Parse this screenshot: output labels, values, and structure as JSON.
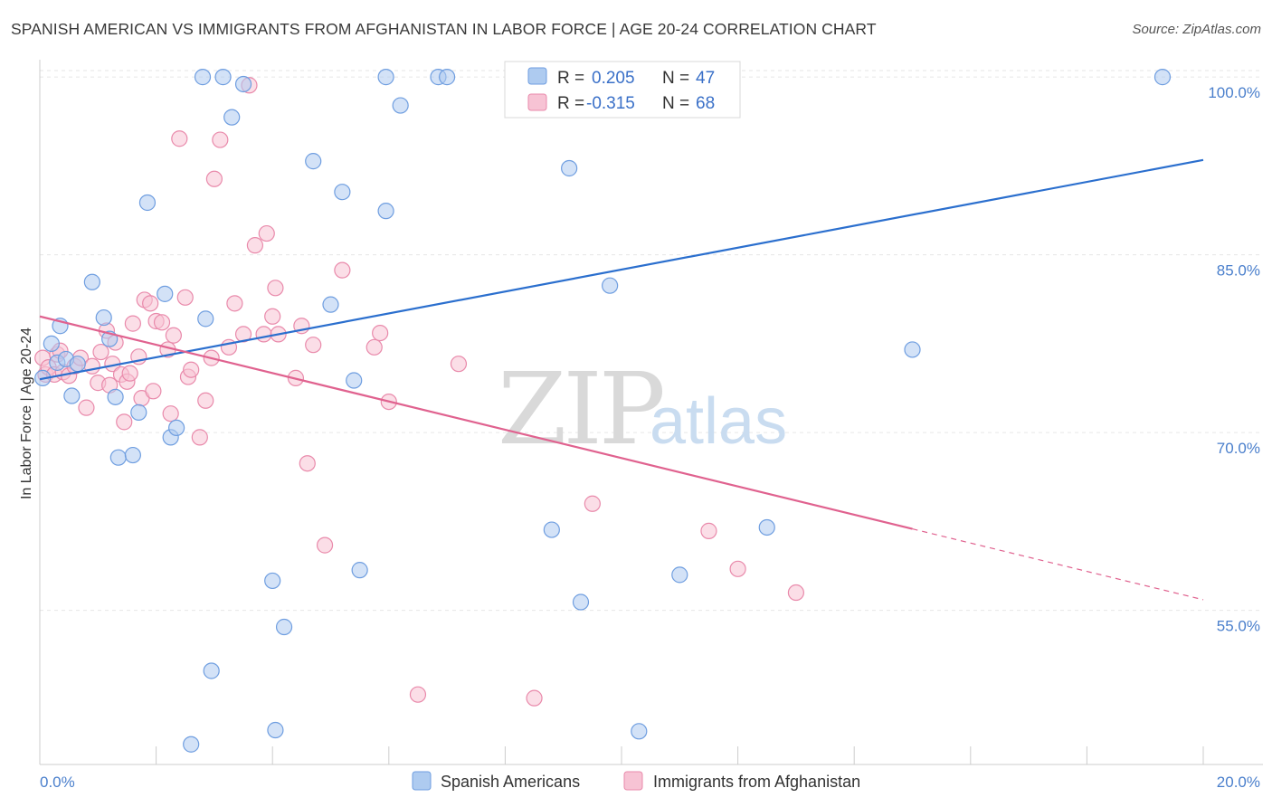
{
  "title": "SPANISH AMERICAN VS IMMIGRANTS FROM AFGHANISTAN IN LABOR FORCE | AGE 20-24 CORRELATION CHART",
  "source": "Source: ZipAtlas.com",
  "watermark": {
    "zip": "ZIP",
    "atlas": "atlas"
  },
  "legend_box": {
    "rows": [
      {
        "r_label": "R = ",
        "r_value": "0.205",
        "n_label": "N = ",
        "n_value": "47"
      },
      {
        "r_label": "R = ",
        "r_value": "-0.315",
        "n_label": "N = ",
        "n_value": "68"
      }
    ]
  },
  "bottom_legend": [
    "Spanish Americans",
    "Immigrants from Afghanistan"
  ],
  "colors": {
    "blue_fill": "#aecbf0",
    "blue_stroke": "#6f9ee0",
    "blue_line": "#2b6fce",
    "pink_fill": "#f7c3d4",
    "pink_stroke": "#e98aab",
    "pink_line": "#e0628f",
    "tick_text": "#4a7fcc",
    "grid": "#e6e6e6"
  },
  "chart_data": {
    "type": "scatter",
    "xlabel": "",
    "ylabel": "In Labor Force | Age 20-24",
    "xlim": [
      0,
      20
    ],
    "ylim": [
      42,
      101
    ],
    "x_tick_labels": [
      "0.0%",
      "20.0%"
    ],
    "y_ticks": [
      55,
      70,
      85,
      100
    ],
    "y_tick_labels": [
      "55.0%",
      "70.0%",
      "85.0%",
      "100.0%"
    ],
    "grid": true,
    "legend_position": "top-center",
    "series": [
      {
        "name": "Spanish Americans",
        "color": "#6f9ee0",
        "r": 0.205,
        "n": 47,
        "trend": {
          "x0": 0.0,
          "y0": 74.5,
          "x1": 20.0,
          "y1": 93.0,
          "dashed_from": null
        },
        "points": [
          [
            0.05,
            74.6
          ],
          [
            0.2,
            77.5
          ],
          [
            0.3,
            75.9
          ],
          [
            0.35,
            79.0
          ],
          [
            0.45,
            76.2
          ],
          [
            0.55,
            73.1
          ],
          [
            0.65,
            75.8
          ],
          [
            0.9,
            82.7
          ],
          [
            1.1,
            79.7
          ],
          [
            1.2,
            77.9
          ],
          [
            1.3,
            73.0
          ],
          [
            1.35,
            67.9
          ],
          [
            1.6,
            68.1
          ],
          [
            1.7,
            71.7
          ],
          [
            1.85,
            89.4
          ],
          [
            2.15,
            81.7
          ],
          [
            2.25,
            69.6
          ],
          [
            2.35,
            70.4
          ],
          [
            2.6,
            43.7
          ],
          [
            2.8,
            100.0
          ],
          [
            2.85,
            79.6
          ],
          [
            2.95,
            49.9
          ],
          [
            3.15,
            100.0
          ],
          [
            3.3,
            96.6
          ],
          [
            3.5,
            99.4
          ],
          [
            4.0,
            57.5
          ],
          [
            4.05,
            44.9
          ],
          [
            4.2,
            53.6
          ],
          [
            4.7,
            92.9
          ],
          [
            5.0,
            80.8
          ],
          [
            5.2,
            90.3
          ],
          [
            5.4,
            74.4
          ],
          [
            5.5,
            58.4
          ],
          [
            5.95,
            88.7
          ],
          [
            5.95,
            100.0
          ],
          [
            6.2,
            97.6
          ],
          [
            6.85,
            100.0
          ],
          [
            7.0,
            100.0
          ],
          [
            8.8,
            61.8
          ],
          [
            9.1,
            92.3
          ],
          [
            9.3,
            55.7
          ],
          [
            9.8,
            82.4
          ],
          [
            10.3,
            44.8
          ],
          [
            11.0,
            58.0
          ],
          [
            12.5,
            62.0
          ],
          [
            15.0,
            77.0
          ],
          [
            19.3,
            100.0
          ]
        ]
      },
      {
        "name": "Immigrants from Afghanistan",
        "color": "#e98aab",
        "r": -0.315,
        "n": 68,
        "trend": {
          "x0": 0.0,
          "y0": 79.8,
          "x1": 20.0,
          "y1": 55.9,
          "dashed_from": 15.0
        },
        "points": [
          [
            0.05,
            76.3
          ],
          [
            0.1,
            74.9
          ],
          [
            0.15,
            75.5
          ],
          [
            0.25,
            74.9
          ],
          [
            0.3,
            76.6
          ],
          [
            0.35,
            76.9
          ],
          [
            0.4,
            75.1
          ],
          [
            0.5,
            74.8
          ],
          [
            0.6,
            75.6
          ],
          [
            0.7,
            76.3
          ],
          [
            0.8,
            72.1
          ],
          [
            0.9,
            75.6
          ],
          [
            1.0,
            74.2
          ],
          [
            1.05,
            76.8
          ],
          [
            1.15,
            78.6
          ],
          [
            1.2,
            74.0
          ],
          [
            1.25,
            75.8
          ],
          [
            1.3,
            77.6
          ],
          [
            1.4,
            74.9
          ],
          [
            1.45,
            70.9
          ],
          [
            1.5,
            74.3
          ],
          [
            1.55,
            75.0
          ],
          [
            1.6,
            79.2
          ],
          [
            1.7,
            76.4
          ],
          [
            1.75,
            72.9
          ],
          [
            1.8,
            81.2
          ],
          [
            1.9,
            80.9
          ],
          [
            1.95,
            73.5
          ],
          [
            2.0,
            79.4
          ],
          [
            2.1,
            79.3
          ],
          [
            2.2,
            77.0
          ],
          [
            2.25,
            71.6
          ],
          [
            2.3,
            78.2
          ],
          [
            2.4,
            94.8
          ],
          [
            2.5,
            81.4
          ],
          [
            2.55,
            74.7
          ],
          [
            2.6,
            75.3
          ],
          [
            2.75,
            69.6
          ],
          [
            2.85,
            72.7
          ],
          [
            2.95,
            76.3
          ],
          [
            3.0,
            91.4
          ],
          [
            3.1,
            94.7
          ],
          [
            3.25,
            77.2
          ],
          [
            3.35,
            80.9
          ],
          [
            3.5,
            78.3
          ],
          [
            3.6,
            99.3
          ],
          [
            3.7,
            85.8
          ],
          [
            3.85,
            78.3
          ],
          [
            3.9,
            86.8
          ],
          [
            4.0,
            79.8
          ],
          [
            4.05,
            82.2
          ],
          [
            4.1,
            78.3
          ],
          [
            4.4,
            74.6
          ],
          [
            4.5,
            79.0
          ],
          [
            4.6,
            67.4
          ],
          [
            4.7,
            77.4
          ],
          [
            4.9,
            60.5
          ],
          [
            5.2,
            83.7
          ],
          [
            5.75,
            77.2
          ],
          [
            5.85,
            78.4
          ],
          [
            6.0,
            72.6
          ],
          [
            6.5,
            47.9
          ],
          [
            7.2,
            75.8
          ],
          [
            8.5,
            47.6
          ],
          [
            9.5,
            64.0
          ],
          [
            11.5,
            61.7
          ],
          [
            12.0,
            58.5
          ],
          [
            13.0,
            56.5
          ]
        ]
      }
    ]
  }
}
